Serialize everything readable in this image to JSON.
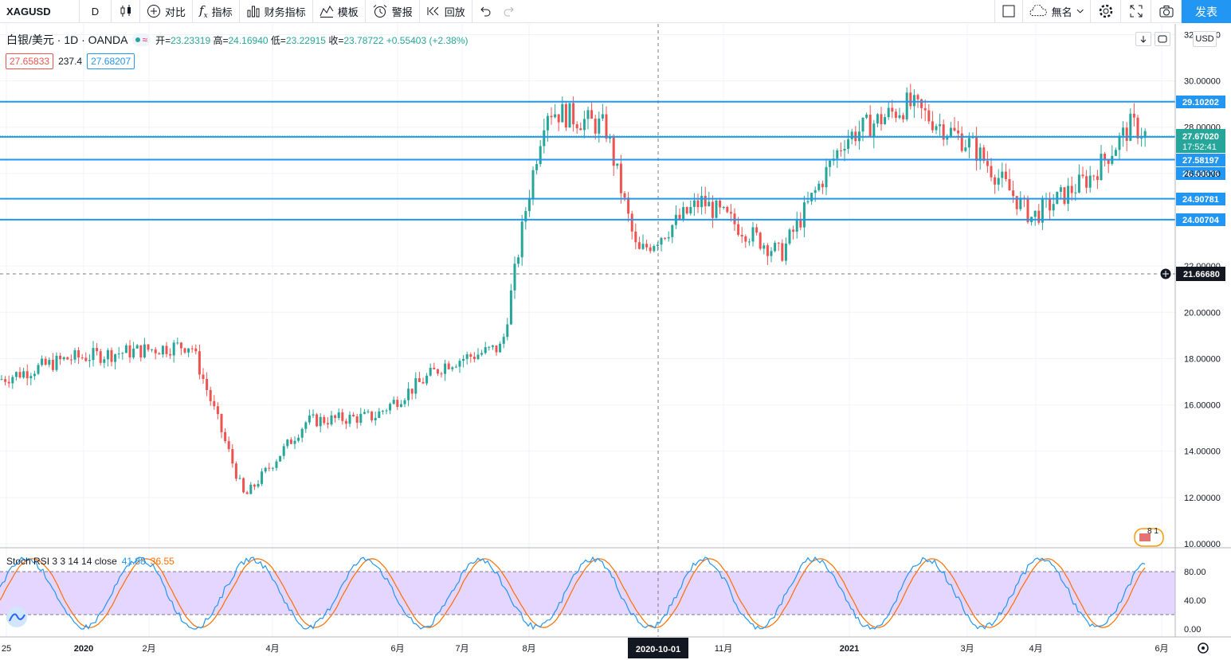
{
  "toolbar": {
    "symbol": "XAGUSD",
    "interval": "D",
    "compare": "对比",
    "indicators": "指标",
    "financials": "财务指标",
    "templates": "模板",
    "alert": "警报",
    "replay": "回放",
    "layout_name": "無名",
    "publish": "发表"
  },
  "legend": {
    "title": "白银/美元 · 1D · OANDA",
    "open_label": "开=",
    "open": "23.23319",
    "high_label": "高=",
    "high": "24.16940",
    "low_label": "低=",
    "low": "23.22915",
    "close_label": "收=",
    "close": "23.78722",
    "change": "+0.55403 (+2.38%)"
  },
  "badges": {
    "bid": "27.65833",
    "spread": "237.4",
    "ask": "27.68207"
  },
  "currency": "USD",
  "stoch": {
    "name": "Stoch RSI 3 3 14 14 close",
    "k": "41.88",
    "d": "36.55"
  },
  "price_scale": {
    "ticks": [
      "32.00000",
      "30.00000",
      "28.00000",
      "26.00000",
      "22.00000",
      "20.00000",
      "18.00000",
      "16.00000",
      "14.00000",
      "12.00000",
      "10.00000"
    ],
    "hlines": [
      "29.10202",
      "27.58197",
      "26.59676",
      "24.90781",
      "24.00704"
    ],
    "last_price": "27.67020",
    "countdown": "17:52:41",
    "crosshair_price": "21.66680"
  },
  "stoch_scale": [
    "80.00",
    "40.00",
    "0.00"
  ],
  "time_scale": [
    "25",
    "2020",
    "2月",
    "4月",
    "6月",
    "7月",
    "8月",
    "11月",
    "2021",
    "3月",
    "4月",
    "6月"
  ],
  "crosshair_date": "2020-10-01",
  "events_badge": "8 1",
  "chart_data": {
    "type": "candlestick",
    "symbol": "XAGUSD",
    "ylim": [
      10,
      32
    ],
    "horizontal_levels": [
      29.10202,
      27.58197,
      26.59676,
      24.90781,
      24.00704
    ],
    "last": 27.6702,
    "approx_close_path": [
      {
        "date": "2019-12-20",
        "close": 17.1
      },
      {
        "date": "2020-01-15",
        "close": 18.0
      },
      {
        "date": "2020-02-20",
        "close": 18.6
      },
      {
        "date": "2020-03-18",
        "close": 12.0
      },
      {
        "date": "2020-04-15",
        "close": 15.3
      },
      {
        "date": "2020-05-15",
        "close": 15.5
      },
      {
        "date": "2020-06-10",
        "close": 17.8
      },
      {
        "date": "2020-07-10",
        "close": 18.5
      },
      {
        "date": "2020-07-28",
        "close": 24.5
      },
      {
        "date": "2020-08-07",
        "close": 28.8
      },
      {
        "date": "2020-09-01",
        "close": 28.0
      },
      {
        "date": "2020-09-24",
        "close": 22.5
      },
      {
        "date": "2020-10-20",
        "close": 24.8
      },
      {
        "date": "2020-11-30",
        "close": 22.5
      },
      {
        "date": "2021-01-05",
        "close": 27.5
      },
      {
        "date": "2021-02-01",
        "close": 29.0
      },
      {
        "date": "2021-03-01",
        "close": 27.2
      },
      {
        "date": "2021-03-31",
        "close": 24.1
      },
      {
        "date": "2021-04-30",
        "close": 25.9
      },
      {
        "date": "2021-05-18",
        "close": 28.1
      },
      {
        "date": "2021-05-25",
        "close": 27.67
      }
    ],
    "indicator": {
      "name": "Stoch RSI 3 3 14 14 close",
      "k": 41.88,
      "d": 36.55,
      "bands": [
        80,
        20
      ],
      "ylim": [
        0,
        100
      ]
    }
  }
}
